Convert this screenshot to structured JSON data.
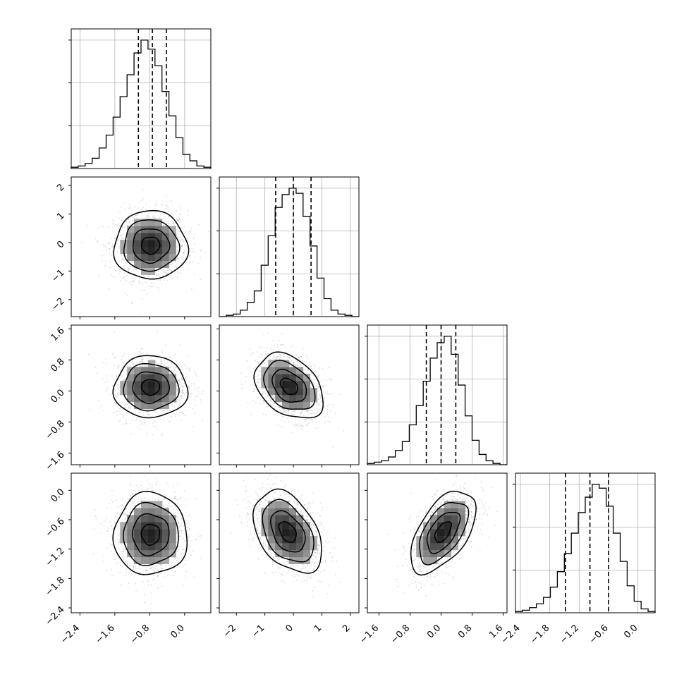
{
  "chart_data": {
    "type": "corner",
    "grid": true,
    "parameters": [
      {
        "index": 0,
        "range": [
          -2.6,
          0.6
        ],
        "ticks": [
          "−2.4",
          "−1.6",
          "−0.8",
          "0.0"
        ],
        "tick_values": [
          -2.4,
          -1.6,
          -0.8,
          0.0
        ]
      },
      {
        "index": 1,
        "range": [
          -2.6,
          2.3
        ],
        "ticks": [
          "−2",
          "−1",
          "0",
          "1",
          "2"
        ],
        "tick_values": [
          -2,
          -1,
          0,
          1,
          2
        ]
      },
      {
        "index": 2,
        "range": [
          -1.9,
          1.7
        ],
        "ticks": [
          "−1.6",
          "−0.8",
          "0.0",
          "0.8",
          "1.6"
        ],
        "tick_values": [
          -1.6,
          -0.8,
          0.0,
          0.8,
          1.6
        ]
      },
      {
        "index": 3,
        "range": [
          -2.5,
          0.35
        ],
        "ticks": [
          "−2.4",
          "−1.8",
          "−1.2",
          "−0.6",
          "0.0"
        ],
        "tick_values": [
          -2.4,
          -1.8,
          -1.2,
          -0.6,
          0.0
        ]
      }
    ],
    "histograms": [
      {
        "param": 0,
        "quantiles": [
          -1.06,
          -0.74,
          -0.42
        ],
        "bin_edges": [
          -2.6,
          -2.44,
          -2.28,
          -2.12,
          -1.96,
          -1.8,
          -1.64,
          -1.48,
          -1.32,
          -1.16,
          -1.0,
          -0.84,
          -0.68,
          -0.52,
          -0.36,
          -0.2,
          -0.04,
          0.12,
          0.28,
          0.44,
          0.6
        ],
        "counts": [
          0.01,
          0.02,
          0.04,
          0.08,
          0.16,
          0.26,
          0.4,
          0.56,
          0.73,
          0.9,
          1.0,
          0.93,
          0.8,
          0.6,
          0.41,
          0.24,
          0.11,
          0.06,
          0.02,
          0.01
        ]
      },
      {
        "param": 1,
        "quantiles": [
          -0.62,
          0.0,
          0.62
        ],
        "bin_edges": [
          -2.6,
          -2.355,
          -2.11,
          -1.865,
          -1.62,
          -1.375,
          -1.13,
          -0.885,
          -0.64,
          -0.395,
          -0.15,
          0.095,
          0.34,
          0.585,
          0.83,
          1.075,
          1.32,
          1.565,
          1.81,
          2.055,
          2.3
        ],
        "counts": [
          0.0,
          0.01,
          0.02,
          0.05,
          0.11,
          0.2,
          0.4,
          0.63,
          0.85,
          0.95,
          1.0,
          0.96,
          0.78,
          0.55,
          0.3,
          0.14,
          0.05,
          0.02,
          0.01,
          0.0
        ]
      },
      {
        "param": 2,
        "quantiles": [
          -0.38,
          0.0,
          0.38
        ],
        "bin_edges": [
          -1.9,
          -1.72,
          -1.54,
          -1.36,
          -1.18,
          -1.0,
          -0.82,
          -0.64,
          -0.46,
          -0.28,
          -0.1,
          0.08,
          0.26,
          0.44,
          0.62,
          0.8,
          0.98,
          1.16,
          1.34,
          1.52,
          1.7
        ],
        "counts": [
          0.01,
          0.02,
          0.03,
          0.06,
          0.11,
          0.18,
          0.31,
          0.46,
          0.65,
          0.83,
          0.95,
          1.0,
          0.86,
          0.62,
          0.38,
          0.19,
          0.08,
          0.03,
          0.01,
          0.0
        ]
      },
      {
        "param": 3,
        "quantiles": [
          -1.48,
          -0.98,
          -0.6
        ],
        "bin_edges": [
          -2.5,
          -2.3575,
          -2.215,
          -2.0725,
          -1.93,
          -1.7875,
          -1.645,
          -1.5025,
          -1.36,
          -1.2175,
          -1.075,
          -0.9325,
          -0.79,
          -0.6475,
          -0.505,
          -0.3625,
          -0.22,
          -0.0775,
          0.065,
          0.2075,
          0.35
        ],
        "counts": [
          0.01,
          0.02,
          0.04,
          0.07,
          0.12,
          0.2,
          0.32,
          0.46,
          0.62,
          0.78,
          0.9,
          1.0,
          0.97,
          0.83,
          0.62,
          0.4,
          0.21,
          0.09,
          0.03,
          0.01
        ]
      }
    ],
    "pairs": [
      {
        "x": 0,
        "y": 1,
        "mean": [
          -0.78,
          -0.1
        ],
        "std": [
          0.42,
          0.6
        ],
        "corr": 0.0
      },
      {
        "x": 0,
        "y": 2,
        "mean": [
          -0.78,
          0.1
        ],
        "std": [
          0.42,
          0.4
        ],
        "corr": 0.0
      },
      {
        "x": 1,
        "y": 2,
        "mean": [
          -0.15,
          0.12
        ],
        "std": [
          0.6,
          0.42
        ],
        "corr": -0.35
      },
      {
        "x": 0,
        "y": 3,
        "mean": [
          -0.78,
          -0.9
        ],
        "std": [
          0.42,
          0.42
        ],
        "corr": 0.0
      },
      {
        "x": 1,
        "y": 3,
        "mean": [
          -0.2,
          -0.85
        ],
        "std": [
          0.6,
          0.42
        ],
        "corr": -0.4
      },
      {
        "x": 2,
        "y": 3,
        "mean": [
          0.05,
          -0.85
        ],
        "std": [
          0.42,
          0.42
        ],
        "corr": 0.55
      }
    ],
    "contour_levels_sigma": [
      0.5,
      1.0,
      1.5,
      2.0
    ]
  }
}
